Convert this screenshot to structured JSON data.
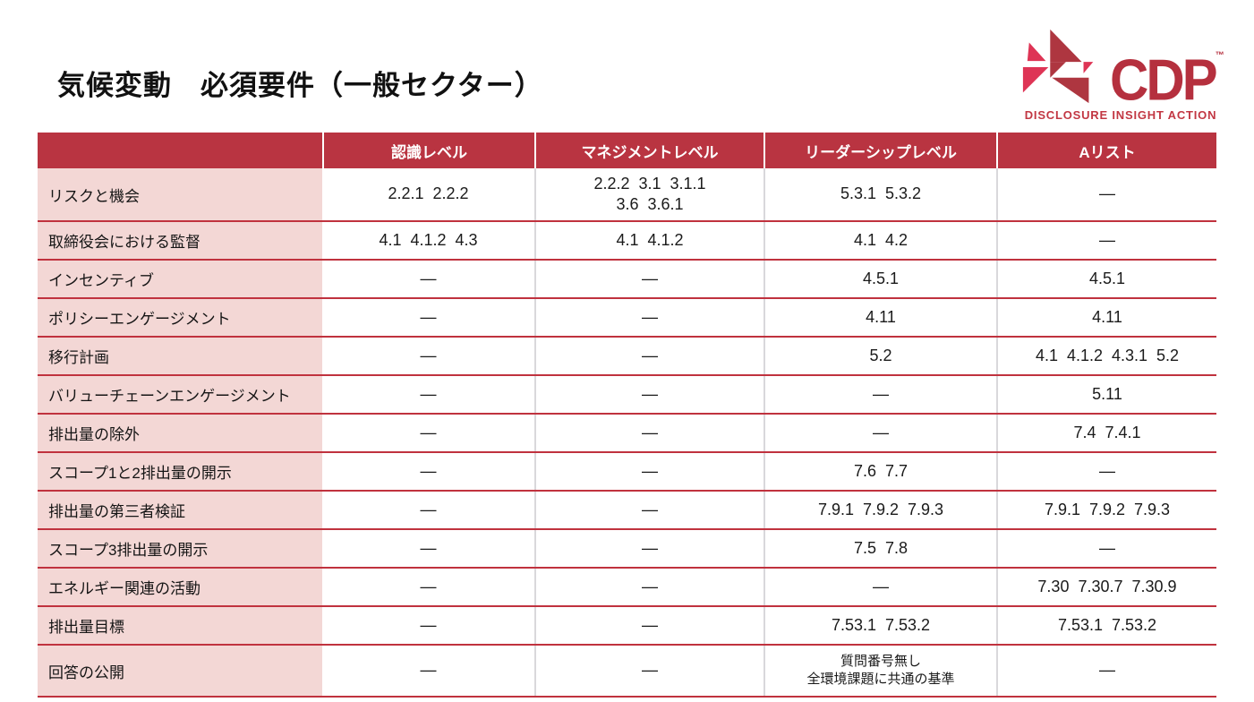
{
  "page": {
    "title": "気候変動　必須要件（一般セクター）"
  },
  "logo": {
    "word": "CDP",
    "tm": "™",
    "tagline": "DISCLOSURE INSIGHT ACTION",
    "colors": {
      "dark_red": "#AE3640",
      "bright_red": "#DE3455",
      "word_red": "#B5303E",
      "tagline_red": "#C23743"
    }
  },
  "table": {
    "header_red": "#B93441",
    "label_pink": "#F3D7D5",
    "border_red": "#C0323E",
    "columns": [
      "",
      "認識レベル",
      "マネジメントレベル",
      "リーダーシップレベル",
      "Aリスト"
    ],
    "rows": [
      {
        "label": "リスクと機会",
        "cells": [
          "2.2.1  2.2.2",
          "2.2.2  3.1  3.1.1\n3.6  3.6.1",
          "5.3.1  5.3.2",
          "—"
        ]
      },
      {
        "label": "取締役会における監督",
        "cells": [
          "4.1  4.1.2  4.3",
          "4.1  4.1.2",
          "4.1  4.2",
          "—"
        ]
      },
      {
        "label": "インセンティブ",
        "cells": [
          "—",
          "—",
          "4.5.1",
          "4.5.1"
        ]
      },
      {
        "label": "ポリシーエンゲージメント",
        "cells": [
          "—",
          "—",
          "4.11",
          "4.11"
        ]
      },
      {
        "label": "移行計画",
        "cells": [
          "—",
          "—",
          "5.2",
          "4.1  4.1.2  4.3.1  5.2"
        ]
      },
      {
        "label": "バリューチェーンエンゲージメント",
        "cells": [
          "—",
          "—",
          "—",
          "5.11"
        ]
      },
      {
        "label": "排出量の除外",
        "cells": [
          "—",
          "—",
          "—",
          "7.4  7.4.1"
        ]
      },
      {
        "label": "スコープ1と2排出量の開示",
        "cells": [
          "—",
          "—",
          "7.6  7.7",
          "—"
        ]
      },
      {
        "label": "排出量の第三者検証",
        "cells": [
          "—",
          "—",
          "7.9.1  7.9.2  7.9.3",
          "7.9.1  7.9.2  7.9.3"
        ]
      },
      {
        "label": "スコープ3排出量の開示",
        "cells": [
          "—",
          "—",
          "7.5  7.8",
          "—"
        ]
      },
      {
        "label": "エネルギー関連の活動",
        "cells": [
          "—",
          "—",
          "—",
          "7.30  7.30.7  7.30.9"
        ]
      },
      {
        "label": "排出量目標",
        "cells": [
          "—",
          "—",
          "7.53.1  7.53.2",
          "7.53.1  7.53.2"
        ]
      },
      {
        "label": "回答の公開",
        "cells": [
          "—",
          "—",
          "質問番号無し\n全環境課題に共通の基準",
          "—"
        ]
      }
    ]
  }
}
